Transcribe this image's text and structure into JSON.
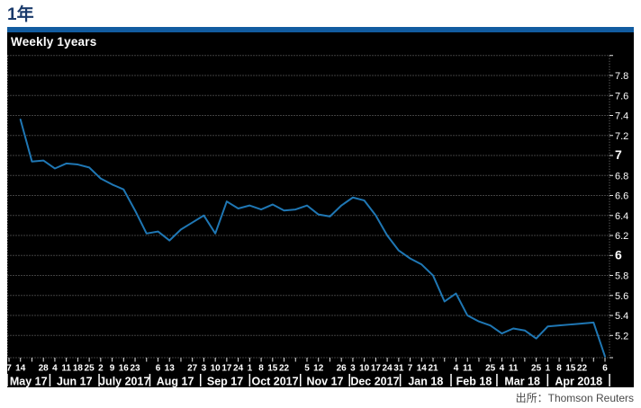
{
  "page": {
    "title": "1年",
    "source": "出所：Thomson Reuters"
  },
  "chart_data": {
    "type": "line",
    "title": "Weekly 1years",
    "series_name": "1年",
    "line_color": "#1f77b4",
    "background": "#000000",
    "grid": "dotted",
    "legend_position": "none",
    "ylim": [
      4.98,
      8.02
    ],
    "y_axis_side": "right",
    "yticks": [
      {
        "label": "7.8",
        "value": 7.8,
        "bold": false
      },
      {
        "label": "7.6",
        "value": 7.6,
        "bold": false
      },
      {
        "label": "7.4",
        "value": 7.4,
        "bold": false
      },
      {
        "label": "7.2",
        "value": 7.2,
        "bold": false
      },
      {
        "label": "7",
        "value": 7.0,
        "bold": true
      },
      {
        "label": "6.8",
        "value": 6.8,
        "bold": false
      },
      {
        "label": "6.6",
        "value": 6.6,
        "bold": false
      },
      {
        "label": "6.4",
        "value": 6.4,
        "bold": false
      },
      {
        "label": "6.2",
        "value": 6.2,
        "bold": false
      },
      {
        "label": "6",
        "value": 6.0,
        "bold": true
      },
      {
        "label": "5.8",
        "value": 5.8,
        "bold": false
      },
      {
        "label": "5.6",
        "value": 5.6,
        "bold": false
      },
      {
        "label": "5.4",
        "value": 5.4,
        "bold": false
      },
      {
        "label": "5.2",
        "value": 5.2,
        "bold": false
      }
    ],
    "unlabeled_gridlines": [
      8.0,
      4.978
    ],
    "total_weeks": 52,
    "first_data_week": 1,
    "dates": [
      "2017-05-14",
      "2017-05-21",
      "2017-05-28",
      "2017-06-04",
      "2017-06-11",
      "2017-06-18",
      "2017-06-25",
      "2017-07-02",
      "2017-07-09",
      "2017-07-16",
      "2017-07-23",
      "2017-07-30",
      "2017-08-06",
      "2017-08-13",
      "2017-08-20",
      "2017-08-27",
      "2017-09-03",
      "2017-09-10",
      "2017-09-17",
      "2017-09-24",
      "2017-10-01",
      "2017-10-08",
      "2017-10-15",
      "2017-10-22",
      "2017-10-29",
      "2017-11-05",
      "2017-11-12",
      "2017-11-19",
      "2017-11-26",
      "2017-12-03",
      "2017-12-10",
      "2017-12-17",
      "2017-12-24",
      "2017-12-31",
      "2018-01-07",
      "2018-01-14",
      "2018-01-21",
      "2018-01-28",
      "2018-02-04",
      "2018-02-11",
      "2018-02-18",
      "2018-02-25",
      "2018-03-04",
      "2018-03-11",
      "2018-03-18",
      "2018-03-25",
      "2018-04-01",
      "2018-04-08",
      "2018-04-15",
      "2018-04-22",
      "2018-04-29",
      "2018-05-06"
    ],
    "values": [
      7.36,
      6.94,
      6.95,
      6.87,
      6.92,
      6.91,
      6.88,
      6.77,
      6.71,
      6.66,
      6.45,
      6.22,
      6.24,
      6.15,
      6.26,
      6.33,
      6.4,
      6.22,
      6.54,
      6.47,
      6.5,
      6.46,
      6.51,
      6.45,
      6.46,
      6.5,
      6.41,
      6.39,
      6.5,
      6.58,
      6.55,
      6.4,
      6.2,
      6.05,
      5.97,
      5.91,
      5.8,
      5.54,
      5.62,
      5.4,
      5.34,
      5.3,
      5.22,
      5.27,
      5.25,
      5.17,
      5.29,
      5.3,
      5.31,
      5.32,
      5.33,
      4.99
    ],
    "day_ticks": [
      {
        "label": "7",
        "week": 0
      },
      {
        "label": "14",
        "week": 1
      },
      {
        "label": "28",
        "week": 3
      },
      {
        "label": "4",
        "week": 4
      },
      {
        "label": "11",
        "week": 5
      },
      {
        "label": "18",
        "week": 6
      },
      {
        "label": "25",
        "week": 7
      },
      {
        "label": "2",
        "week": 8
      },
      {
        "label": "9",
        "week": 9
      },
      {
        "label": "16",
        "week": 10
      },
      {
        "label": "23",
        "week": 11
      },
      {
        "label": "6",
        "week": 13
      },
      {
        "label": "13",
        "week": 14
      },
      {
        "label": "27",
        "week": 16
      },
      {
        "label": "3",
        "week": 17
      },
      {
        "label": "10",
        "week": 18
      },
      {
        "label": "17",
        "week": 19
      },
      {
        "label": "24",
        "week": 20
      },
      {
        "label": "1",
        "week": 21
      },
      {
        "label": "8",
        "week": 22
      },
      {
        "label": "15",
        "week": 23
      },
      {
        "label": "22",
        "week": 24
      },
      {
        "label": "5",
        "week": 26
      },
      {
        "label": "12",
        "week": 27
      },
      {
        "label": "26",
        "week": 29
      },
      {
        "label": "3",
        "week": 30
      },
      {
        "label": "10",
        "week": 31
      },
      {
        "label": "17",
        "week": 32
      },
      {
        "label": "24",
        "week": 33
      },
      {
        "label": "31",
        "week": 34
      },
      {
        "label": "7",
        "week": 35
      },
      {
        "label": "14",
        "week": 36
      },
      {
        "label": "21",
        "week": 37
      },
      {
        "label": "4",
        "week": 39
      },
      {
        "label": "11",
        "week": 40
      },
      {
        "label": "25",
        "week": 42
      },
      {
        "label": "4",
        "week": 43
      },
      {
        "label": "11",
        "week": 44
      },
      {
        "label": "25",
        "week": 46
      },
      {
        "label": "1",
        "week": 47
      },
      {
        "label": "8",
        "week": 48
      },
      {
        "label": "15",
        "week": 49
      },
      {
        "label": "22",
        "week": 50
      },
      {
        "label": "6",
        "week": 52
      }
    ],
    "months": [
      {
        "label": "May 17",
        "start": -0.16,
        "end": 3.57
      },
      {
        "label": "Jun 17",
        "start": 3.57,
        "end": 7.86
      },
      {
        "label": "July 2017",
        "start": 7.86,
        "end": 12.29
      },
      {
        "label": "Aug 17",
        "start": 12.29,
        "end": 16.71
      },
      {
        "label": "Sep 17",
        "start": 16.71,
        "end": 21.0
      },
      {
        "label": "Oct 2017",
        "start": 21.0,
        "end": 25.43
      },
      {
        "label": "Nov 17",
        "start": 25.43,
        "end": 29.71
      },
      {
        "label": "Dec 2017",
        "start": 29.71,
        "end": 34.14
      },
      {
        "label": "Jan 18",
        "start": 34.14,
        "end": 38.57
      },
      {
        "label": "Feb 18",
        "start": 38.57,
        "end": 42.57
      },
      {
        "label": "Mar 18",
        "start": 42.57,
        "end": 47.0
      },
      {
        "label": "Apr 2018",
        "start": 47.0,
        "end": 52.4
      }
    ]
  }
}
